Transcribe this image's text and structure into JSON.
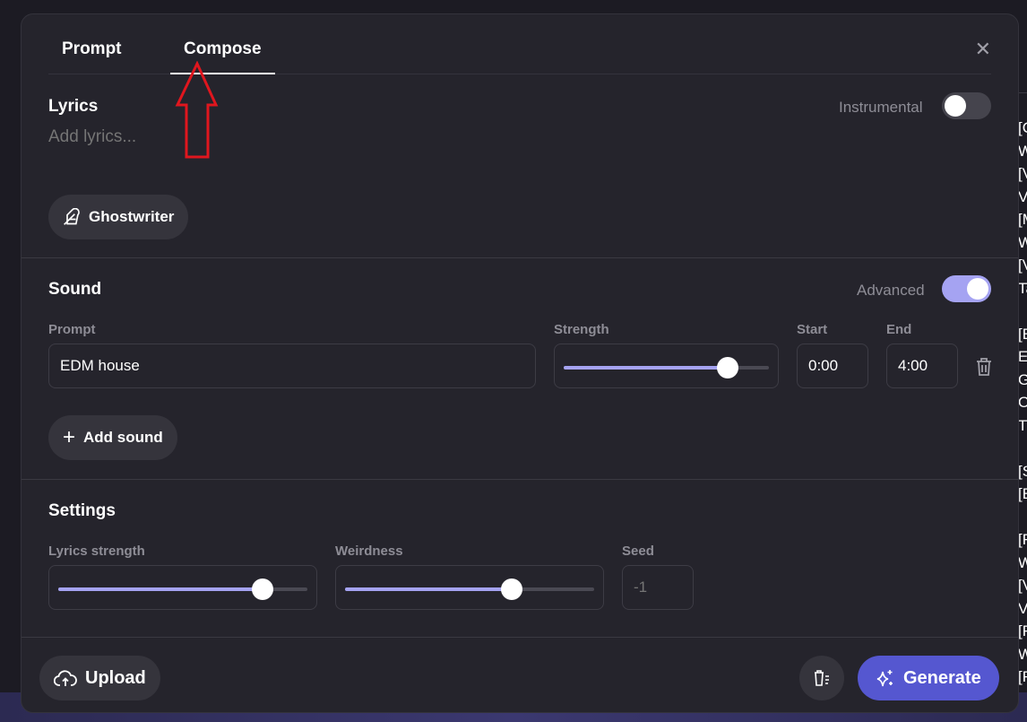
{
  "background_fragments": [
    "[C",
    "W",
    "[V",
    "V",
    "[M",
    "W",
    "[V",
    "Ta",
    "",
    "[E",
    "E",
    "G",
    "O",
    "T",
    "",
    "[S",
    "[E",
    "",
    "[F",
    "W",
    "[V",
    "V",
    "[F",
    "W",
    "[F"
  ],
  "tabs": [
    {
      "label": "Prompt",
      "active": false
    },
    {
      "label": "Compose",
      "active": true
    }
  ],
  "close_icon": "close-icon",
  "lyrics": {
    "title": "Lyrics",
    "placeholder": "Add lyrics...",
    "instrumental_label": "Instrumental",
    "instrumental_on": false,
    "ghostwriter_label": "Ghostwriter"
  },
  "sound": {
    "title": "Sound",
    "advanced_label": "Advanced",
    "advanced_on": true,
    "columns": {
      "prompt": "Prompt",
      "strength": "Strength",
      "start": "Start",
      "end": "End"
    },
    "row": {
      "prompt": "EDM house",
      "strength": 0.8,
      "start": "0:00",
      "end": "4:00"
    },
    "add_sound_label": "Add sound"
  },
  "settings": {
    "title": "Settings",
    "lyrics_strength_label": "Lyrics strength",
    "lyrics_strength": 0.82,
    "weirdness_label": "Weirdness",
    "weirdness": 0.67,
    "seed_label": "Seed",
    "seed_placeholder": "-1"
  },
  "footer": {
    "upload_label": "Upload",
    "generate_label": "Generate"
  },
  "colors": {
    "accent": "#5557d0",
    "toggle_on": "#a5a3f2",
    "annotation_arrow": "#e0161e"
  }
}
